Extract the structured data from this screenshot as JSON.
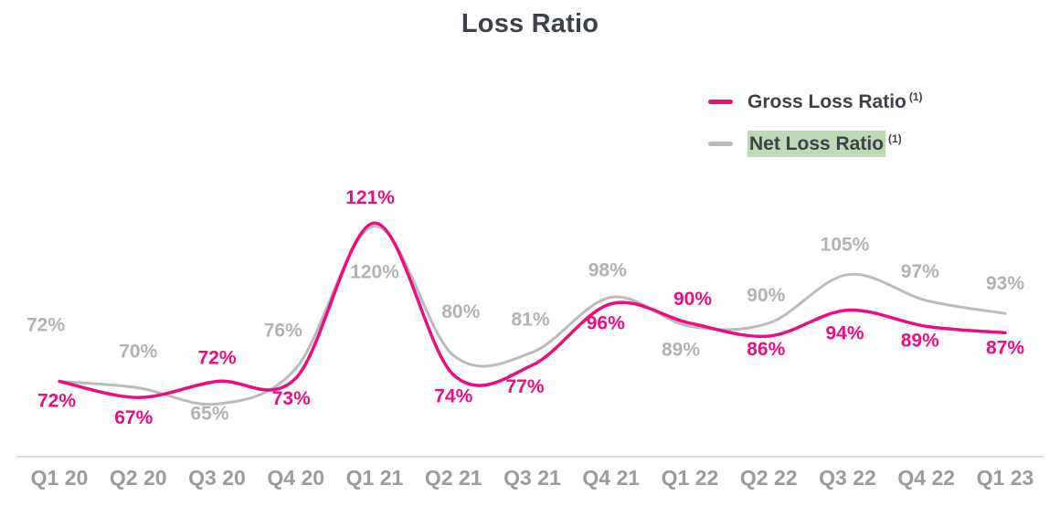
{
  "legend": {
    "items": [
      {
        "label": "Gross Loss Ratio",
        "footnote": "(1)",
        "color": "#EC0E7E",
        "highlight": null
      },
      {
        "label": "Net Loss Ratio",
        "footnote": "(1)",
        "color": "#B9B9B9",
        "highlight": "#BED9B5"
      }
    ]
  },
  "chart_data": {
    "type": "line",
    "title": "Loss Ratio",
    "xlabel": "",
    "ylabel": "",
    "unit": "%",
    "categories": [
      "Q1 20",
      "Q2 20",
      "Q3 20",
      "Q4 20",
      "Q1 21",
      "Q2 21",
      "Q3 21",
      "Q4 21",
      "Q1 22",
      "Q2 22",
      "Q3 22",
      "Q4 22",
      "Q1 23"
    ],
    "series": [
      {
        "name": "Gross Loss Ratio (1)",
        "color": "#EC0E7E",
        "label_color": "#EC0E7E",
        "values": [
          72,
          67,
          72,
          73,
          121,
          74,
          77,
          96,
          90,
          86,
          94,
          89,
          87
        ],
        "label_dy": [
          21,
          22,
          -26,
          22,
          -28,
          23,
          23,
          21,
          -27,
          14,
          25,
          15,
          16
        ],
        "label_dx": [
          -3,
          -5,
          0,
          -5,
          -5,
          0,
          -8,
          -6,
          3,
          -3,
          -3,
          -7,
          0
        ]
      },
      {
        "name": "Net Loss Ratio (1)",
        "color": "#BBBBBB",
        "label_color": "#B2B2B2",
        "values": [
          72,
          70,
          65,
          76,
          120,
          80,
          81,
          98,
          89,
          90,
          105,
          97,
          93
        ],
        "label_dy": [
          -62,
          -40,
          10,
          -42,
          50,
          -48,
          -36,
          -30,
          25,
          -31,
          -33,
          -32,
          -33
        ],
        "label_dx": [
          -15,
          0,
          -8,
          -14,
          0,
          8,
          -2,
          -4,
          -10,
          -3,
          -3,
          -7,
          0
        ]
      }
    ],
    "ylim": [
      60,
      130
    ],
    "grid": false,
    "smoothing": true,
    "legend_position": "top-right",
    "axis_color": "#DADADA",
    "x_tick_color": "#9B9B9B"
  }
}
